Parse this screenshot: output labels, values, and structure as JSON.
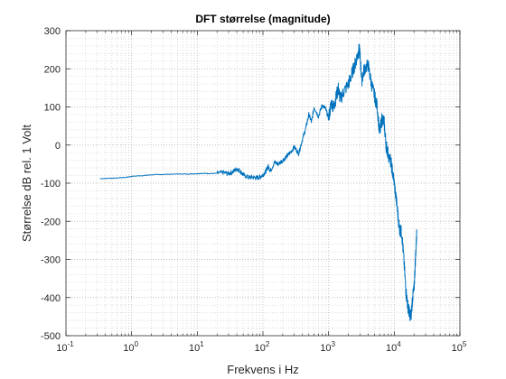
{
  "chart_data": {
    "type": "line",
    "title": "DFT størrelse (magnitude)",
    "xlabel": "Frekvens i Hz",
    "ylabel": "Størrelse dB rel. 1 Volt",
    "xscale": "log",
    "xlim": [
      0.1,
      100000
    ],
    "ylim": [
      -500,
      300
    ],
    "grid": "on (major and minor, dotted)",
    "legend": "none",
    "x_ticks": [
      {
        "value": 0.1,
        "base": "10",
        "exp": "-1"
      },
      {
        "value": 1,
        "base": "10",
        "exp": "0"
      },
      {
        "value": 10,
        "base": "10",
        "exp": "1"
      },
      {
        "value": 100,
        "base": "10",
        "exp": "2"
      },
      {
        "value": 1000,
        "base": "10",
        "exp": "3"
      },
      {
        "value": 10000,
        "base": "10",
        "exp": "4"
      },
      {
        "value": 100000,
        "base": "10",
        "exp": "5"
      }
    ],
    "y_ticks": [
      300,
      200,
      100,
      0,
      -100,
      -200,
      -300,
      -400,
      -500
    ],
    "line_color": "#0072bd",
    "series": [
      {
        "x": [
          0.33,
          0.5,
          0.8,
          1,
          1.5,
          2,
          3,
          5,
          7,
          10,
          13,
          15,
          20,
          25,
          30,
          35,
          40,
          45,
          50,
          60,
          70,
          80,
          90,
          100,
          110,
          120,
          130,
          150,
          170,
          200,
          230,
          260,
          300,
          350,
          400,
          450,
          500,
          550,
          600,
          700,
          800,
          900,
          1000,
          1100,
          1200,
          1300,
          1400,
          1500,
          1700,
          2000,
          2200,
          2500,
          2700,
          2900,
          3000,
          3200,
          3500,
          4000,
          4500,
          5000,
          5500,
          6000,
          6500,
          7000,
          7500,
          8000,
          9000,
          10000,
          11000,
          12000,
          13000,
          14000,
          15000,
          16000,
          17000,
          18000,
          19000,
          20000,
          21000,
          22000
        ],
        "y": [
          -88,
          -87,
          -85,
          -82,
          -80,
          -78,
          -77,
          -76,
          -76,
          -75,
          -74,
          -75,
          -74,
          -72,
          -75,
          -70,
          -62,
          -68,
          -78,
          -85,
          -84,
          -86,
          -84,
          -78,
          -70,
          -55,
          -68,
          -45,
          -50,
          -40,
          -30,
          -20,
          -5,
          -22,
          15,
          45,
          80,
          60,
          100,
          75,
          105,
          95,
          70,
          110,
          100,
          125,
          150,
          120,
          140,
          160,
          180,
          210,
          230,
          250,
          240,
          170,
          200,
          210,
          160,
          130,
          100,
          30,
          70,
          60,
          0,
          -20,
          -50,
          -100,
          -160,
          -220,
          -230,
          -300,
          -380,
          -420,
          -440,
          -450,
          -400,
          -380,
          -300,
          -230
        ]
      }
    ]
  }
}
